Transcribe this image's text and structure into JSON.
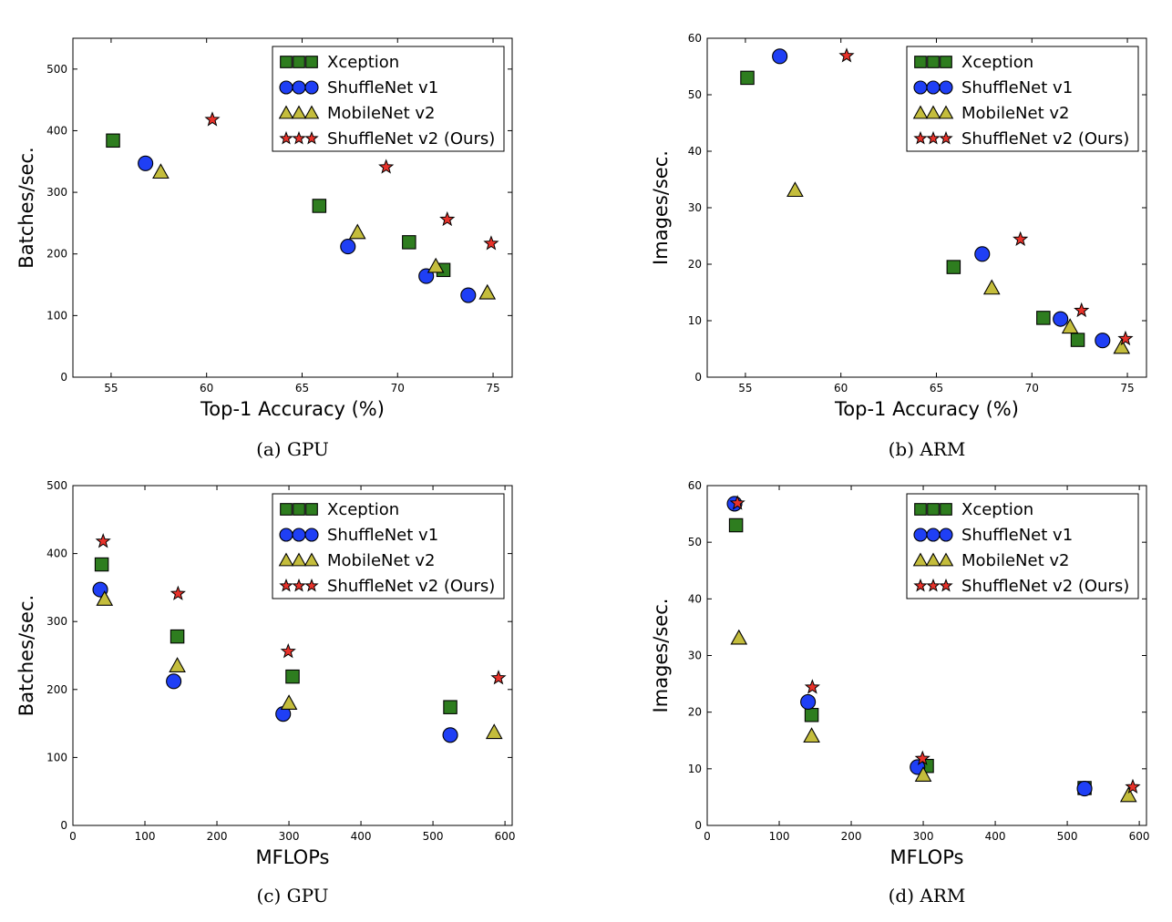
{
  "series_styles": [
    {
      "name": "Xception",
      "marker": "square",
      "color": "#2e7d1f"
    },
    {
      "name": "ShuffleNet v1",
      "marker": "circle",
      "color": "#1f3ff5"
    },
    {
      "name": "MobileNet v2",
      "marker": "triangle",
      "color": "#c4bd3c"
    },
    {
      "name": "ShuffleNet v2 (Ours)",
      "marker": "star",
      "color": "#e8322a"
    }
  ],
  "chart_data": [
    {
      "type": "scatter",
      "caption": "(a) GPU",
      "xlabel": "Top-1 Accuracy (%)",
      "ylabel": "Batches/sec.",
      "xlim": [
        53,
        76
      ],
      "ylim": [
        0,
        550
      ],
      "xticks": [
        "55",
        "60",
        "65",
        "70",
        "75"
      ],
      "yticks": [
        "0",
        "100",
        "200",
        "300",
        "400",
        "500"
      ],
      "grid": false,
      "legend": "top-right",
      "series": [
        {
          "name": "Xception",
          "points": [
            [
              55.1,
              384
            ],
            [
              65.9,
              278
            ],
            [
              70.6,
              219
            ],
            [
              72.4,
              174
            ]
          ]
        },
        {
          "name": "ShuffleNet v1",
          "points": [
            [
              56.8,
              347
            ],
            [
              67.4,
              212
            ],
            [
              71.5,
              164
            ],
            [
              73.7,
              133
            ]
          ]
        },
        {
          "name": "MobileNet v2",
          "points": [
            [
              57.6,
              333
            ],
            [
              67.9,
              235
            ],
            [
              72.0,
              180
            ],
            [
              74.7,
              137
            ]
          ]
        },
        {
          "name": "ShuffleNet v2 (Ours)",
          "points": [
            [
              60.3,
              418
            ],
            [
              69.4,
              341
            ],
            [
              72.6,
              256
            ],
            [
              74.9,
              217
            ]
          ]
        }
      ]
    },
    {
      "type": "scatter",
      "caption": "(b) ARM",
      "xlabel": "Top-1 Accuracy (%)",
      "ylabel": "Images/sec.",
      "xlim": [
        53,
        76
      ],
      "ylim": [
        0,
        60
      ],
      "xticks": [
        "55",
        "60",
        "65",
        "70",
        "75"
      ],
      "yticks": [
        "0",
        "10",
        "20",
        "30",
        "40",
        "50",
        "60"
      ],
      "grid": false,
      "legend": "top-right",
      "series": [
        {
          "name": "Xception",
          "points": [
            [
              55.1,
              53.0
            ],
            [
              65.9,
              19.5
            ],
            [
              70.6,
              10.5
            ],
            [
              72.4,
              6.6
            ]
          ]
        },
        {
          "name": "ShuffleNet v1",
          "points": [
            [
              56.8,
              56.8
            ],
            [
              67.4,
              21.8
            ],
            [
              71.5,
              10.3
            ],
            [
              73.7,
              6.5
            ]
          ]
        },
        {
          "name": "MobileNet v2",
          "points": [
            [
              57.6,
              33.1
            ],
            [
              67.9,
              15.8
            ],
            [
              72.0,
              8.9
            ],
            [
              74.7,
              5.3
            ]
          ]
        },
        {
          "name": "ShuffleNet v2 (Ours)",
          "points": [
            [
              60.3,
              56.9
            ],
            [
              69.4,
              24.4
            ],
            [
              72.6,
              11.8
            ],
            [
              74.9,
              6.8
            ]
          ]
        }
      ]
    },
    {
      "type": "scatter",
      "caption": "(c) GPU",
      "xlabel": "MFLOPs",
      "ylabel": "Batches/sec.",
      "xlim": [
        0,
        610
      ],
      "ylim": [
        0,
        500
      ],
      "xticks": [
        "0",
        "100",
        "200",
        "300",
        "400",
        "500",
        "600"
      ],
      "yticks": [
        "0",
        "100",
        "200",
        "300",
        "400",
        "500"
      ],
      "grid": false,
      "legend": "top-right",
      "series": [
        {
          "name": "Xception",
          "points": [
            [
              40,
              384
            ],
            [
              145,
              278
            ],
            [
              305,
              219
            ],
            [
              524,
              174
            ]
          ]
        },
        {
          "name": "ShuffleNet v1",
          "points": [
            [
              38,
              347
            ],
            [
              140,
              212
            ],
            [
              292,
              164
            ],
            [
              524,
              133
            ]
          ]
        },
        {
          "name": "MobileNet v2",
          "points": [
            [
              44,
              333
            ],
            [
              145,
              235
            ],
            [
              300,
              180
            ],
            [
              585,
              137
            ]
          ]
        },
        {
          "name": "ShuffleNet v2 (Ours)",
          "points": [
            [
              42,
              418
            ],
            [
              146,
              341
            ],
            [
              299,
              256
            ],
            [
              591,
              217
            ]
          ]
        }
      ]
    },
    {
      "type": "scatter",
      "caption": "(d) ARM",
      "xlabel": "MFLOPs",
      "ylabel": "Images/sec.",
      "xlim": [
        0,
        610
      ],
      "ylim": [
        0,
        60
      ],
      "xticks": [
        "0",
        "100",
        "200",
        "300",
        "400",
        "500",
        "600"
      ],
      "yticks": [
        "0",
        "10",
        "20",
        "30",
        "40",
        "50",
        "60"
      ],
      "grid": false,
      "legend": "top-right",
      "series": [
        {
          "name": "Xception",
          "points": [
            [
              40,
              53.0
            ],
            [
              145,
              19.5
            ],
            [
              305,
              10.5
            ],
            [
              524,
              6.6
            ]
          ]
        },
        {
          "name": "ShuffleNet v1",
          "points": [
            [
              38,
              56.8
            ],
            [
              140,
              21.8
            ],
            [
              292,
              10.3
            ],
            [
              524,
              6.5
            ]
          ]
        },
        {
          "name": "MobileNet v2",
          "points": [
            [
              44,
              33.1
            ],
            [
              145,
              15.8
            ],
            [
              300,
              8.9
            ],
            [
              585,
              5.3
            ]
          ]
        },
        {
          "name": "ShuffleNet v2 (Ours)",
          "points": [
            [
              42,
              56.9
            ],
            [
              146,
              24.4
            ],
            [
              299,
              11.8
            ],
            [
              591,
              6.8
            ]
          ]
        }
      ]
    }
  ]
}
